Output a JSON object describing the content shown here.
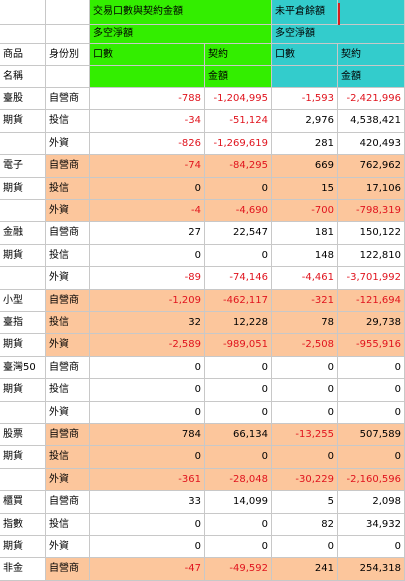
{
  "header": {
    "group_trade": "交易口數與契約金額",
    "group_oi": "未平倉餘額",
    "net_trade": "多空淨額",
    "net_oi": "多空淨額",
    "col_product_1": "商品",
    "col_product_2": "名稱",
    "col_identity": "身份別",
    "col_lots_trade": "口數",
    "col_amt_trade_1": "契約",
    "col_amt_trade_2": "金額",
    "col_lots_oi": "口數",
    "col_amt_oi_1": "契約",
    "col_amt_oi_2": "金額"
  },
  "colors": {
    "trade_header": "#33ee00",
    "oi_header": "#33cccc",
    "group_highlight": "#fcc69c",
    "negative_text": "#e0141e"
  },
  "groups": [
    {
      "name": [
        "臺股",
        "期貨",
        ""
      ],
      "highlight": false,
      "rows": [
        {
          "identity": "自營商",
          "lots": "-788",
          "amount": "-1,204,995",
          "oi_lots": "-1,593",
          "oi_amount": "-2,421,996"
        },
        {
          "identity": "投信",
          "lots": "-34",
          "amount": "-51,124",
          "oi_lots": "2,976",
          "oi_amount": "4,538,421"
        },
        {
          "identity": "外資",
          "lots": "-826",
          "amount": "-1,269,619",
          "oi_lots": "281",
          "oi_amount": "420,493"
        }
      ]
    },
    {
      "name": [
        "電子",
        "期貨",
        ""
      ],
      "highlight": true,
      "rows": [
        {
          "identity": "自營商",
          "lots": "-74",
          "amount": "-84,295",
          "oi_lots": "669",
          "oi_amount": "762,962"
        },
        {
          "identity": "投信",
          "lots": "0",
          "amount": "0",
          "oi_lots": "15",
          "oi_amount": "17,106"
        },
        {
          "identity": "外資",
          "lots": "-4",
          "amount": "-4,690",
          "oi_lots": "-700",
          "oi_amount": "-798,319"
        }
      ]
    },
    {
      "name": [
        "金融",
        "期貨",
        ""
      ],
      "highlight": false,
      "rows": [
        {
          "identity": "自營商",
          "lots": "27",
          "amount": "22,547",
          "oi_lots": "181",
          "oi_amount": "150,122"
        },
        {
          "identity": "投信",
          "lots": "0",
          "amount": "0",
          "oi_lots": "148",
          "oi_amount": "122,810"
        },
        {
          "identity": "外資",
          "lots": "-89",
          "amount": "-74,146",
          "oi_lots": "-4,461",
          "oi_amount": "-3,701,992"
        }
      ]
    },
    {
      "name": [
        "小型",
        "臺指",
        "期貨"
      ],
      "highlight": true,
      "rows": [
        {
          "identity": "自營商",
          "lots": "-1,209",
          "amount": "-462,117",
          "oi_lots": "-321",
          "oi_amount": "-121,694"
        },
        {
          "identity": "投信",
          "lots": "32",
          "amount": "12,228",
          "oi_lots": "78",
          "oi_amount": "29,738"
        },
        {
          "identity": "外資",
          "lots": "-2,589",
          "amount": "-989,051",
          "oi_lots": "-2,508",
          "oi_amount": "-955,916"
        }
      ]
    },
    {
      "name": [
        "臺灣50",
        "期貨",
        ""
      ],
      "highlight": false,
      "rows": [
        {
          "identity": "自營商",
          "lots": "0",
          "amount": "0",
          "oi_lots": "0",
          "oi_amount": "0"
        },
        {
          "identity": "投信",
          "lots": "0",
          "amount": "0",
          "oi_lots": "0",
          "oi_amount": "0"
        },
        {
          "identity": "外資",
          "lots": "0",
          "amount": "0",
          "oi_lots": "0",
          "oi_amount": "0"
        }
      ]
    },
    {
      "name": [
        "股票",
        "期貨",
        ""
      ],
      "highlight": true,
      "rows": [
        {
          "identity": "自營商",
          "lots": "784",
          "amount": "66,134",
          "oi_lots": "-13,255",
          "oi_amount": "507,589"
        },
        {
          "identity": "投信",
          "lots": "0",
          "amount": "0",
          "oi_lots": "0",
          "oi_amount": "0"
        },
        {
          "identity": "外資",
          "lots": "-361",
          "amount": "-28,048",
          "oi_lots": "-30,229",
          "oi_amount": "-2,160,596"
        }
      ]
    },
    {
      "name": [
        "櫃買",
        "指數",
        "期貨"
      ],
      "highlight": false,
      "rows": [
        {
          "identity": "自營商",
          "lots": "33",
          "amount": "14,099",
          "oi_lots": "5",
          "oi_amount": "2,098"
        },
        {
          "identity": "投信",
          "lots": "0",
          "amount": "0",
          "oi_lots": "82",
          "oi_amount": "34,932"
        },
        {
          "identity": "外資",
          "lots": "0",
          "amount": "0",
          "oi_lots": "0",
          "oi_amount": "0"
        }
      ]
    },
    {
      "name": [
        "非金",
        "",
        ""
      ],
      "highlight": true,
      "rows": [
        {
          "identity": "自營商",
          "lots": "-47",
          "amount": "-49,592",
          "oi_lots": "241",
          "oi_amount": "254,318"
        }
      ]
    }
  ]
}
